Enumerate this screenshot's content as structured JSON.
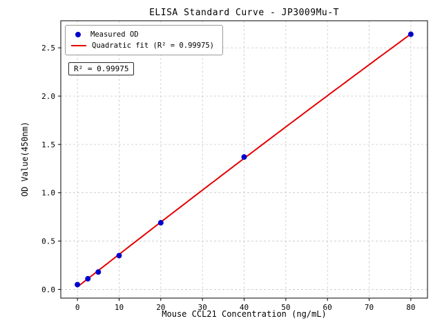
{
  "chart_data": {
    "type": "scatter",
    "title": "ELISA Standard Curve - JP3009Mu-T",
    "xlabel": "Mouse CCL21 Concentration (ng/mL)",
    "ylabel": "OD Value(450nm)",
    "legend": [
      "Measured OD",
      "Quadratic fit (R² = 0.99975)"
    ],
    "annotation": "R² = 0.99975",
    "r_squared": 0.99975,
    "series_name": "Measured OD",
    "fit_type": "quadratic",
    "points": [
      [
        0,
        0.05
      ],
      [
        2.5,
        0.11
      ],
      [
        5,
        0.18
      ],
      [
        10,
        0.35
      ],
      [
        20,
        0.69
      ],
      [
        40,
        1.37
      ],
      [
        80,
        2.64
      ]
    ],
    "xticks": [
      0,
      10,
      20,
      30,
      40,
      50,
      60,
      70,
      80
    ],
    "yticks": [
      0,
      0.5,
      1,
      1.5,
      2,
      2.5
    ],
    "xlim": [
      -4,
      84
    ],
    "ylim": [
      -0.09,
      2.78
    ],
    "grid": true,
    "grid_style": "dashed",
    "legend_position": "upper-left",
    "colors": {
      "points": "#0000cc",
      "fit_line": "#e50000",
      "grid": "#c8c8c8",
      "axes": "#000000"
    }
  }
}
